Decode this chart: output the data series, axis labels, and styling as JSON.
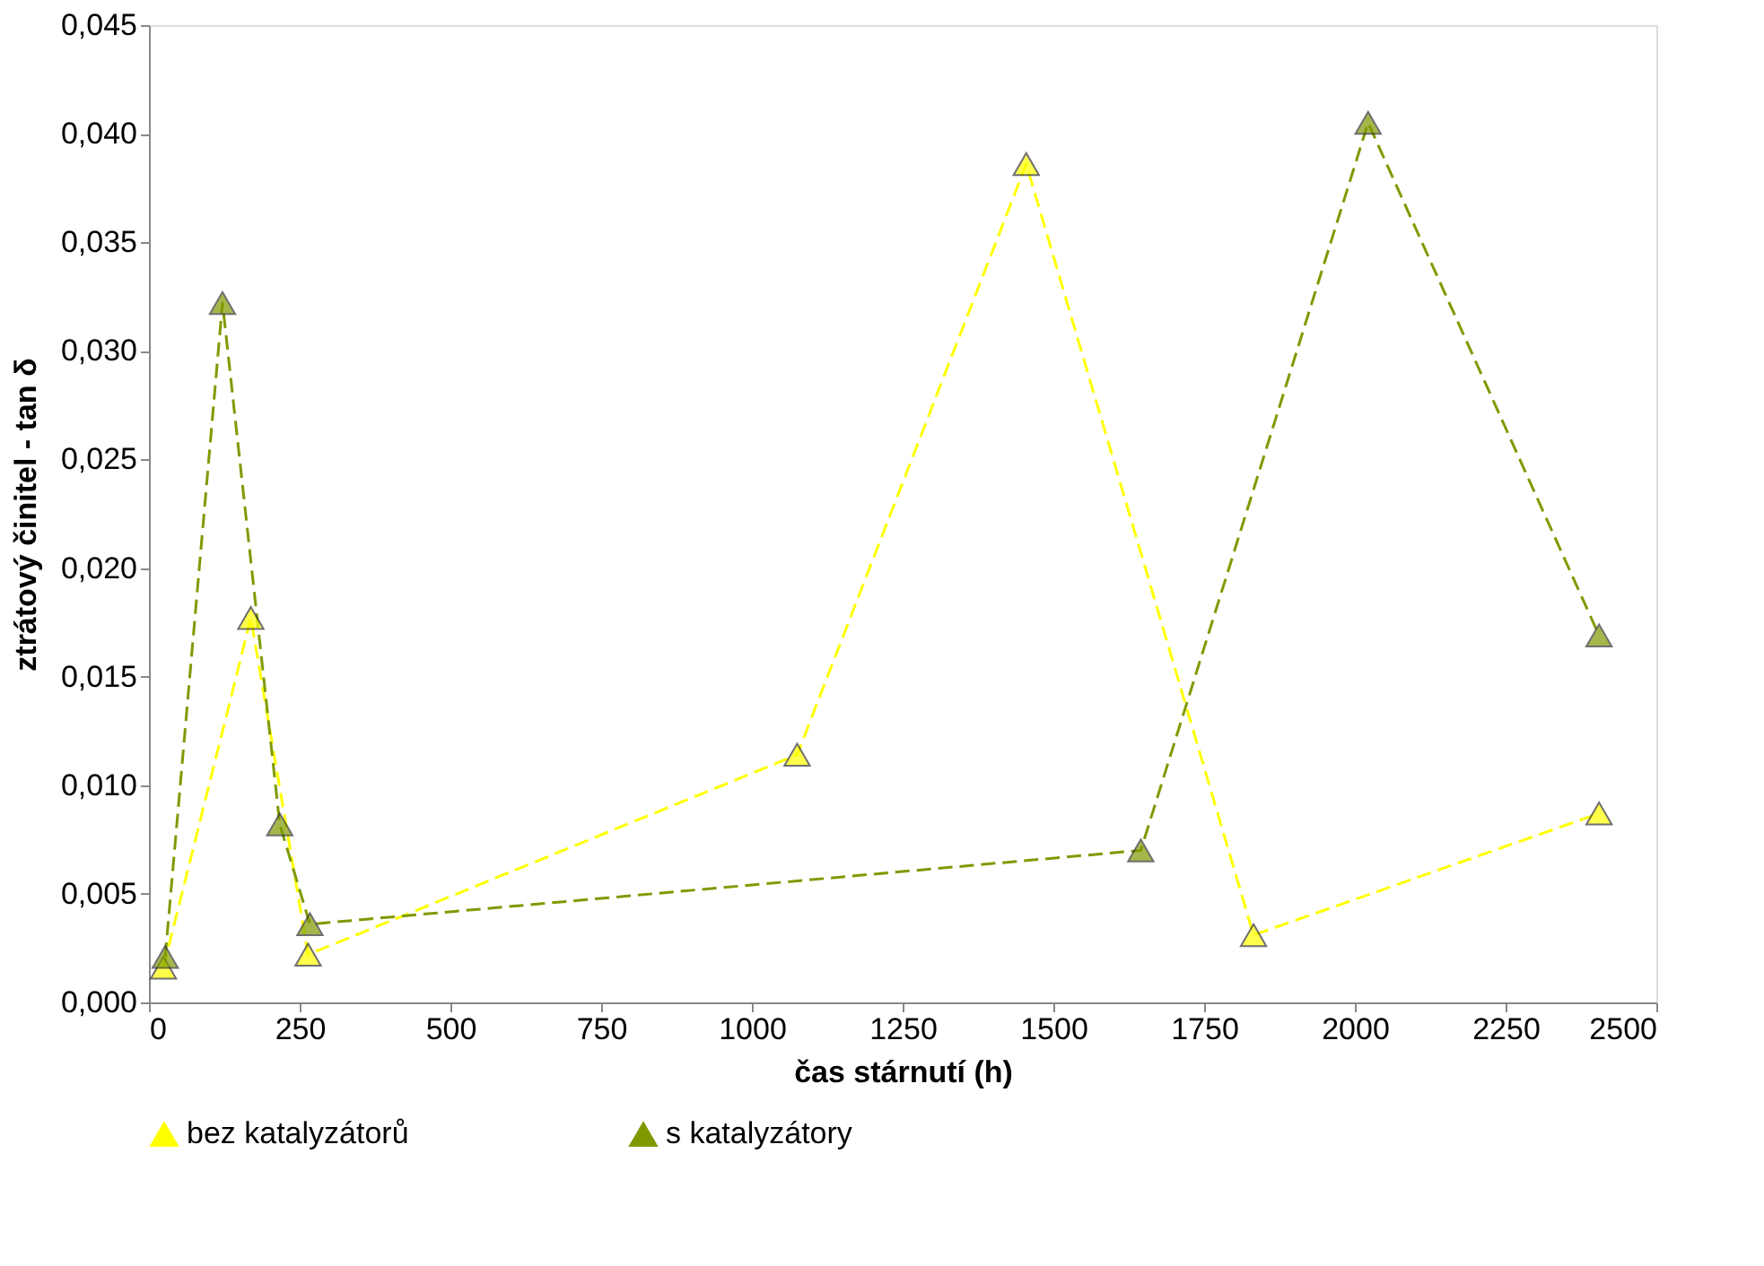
{
  "chart_data": {
    "type": "line",
    "xlabel": "čas stárnutí (h)",
    "ylabel": "ztrátový činitel - tan δ",
    "xlim": [
      0,
      2500
    ],
    "xticks": [
      0,
      250,
      500,
      750,
      1000,
      1250,
      1500,
      1750,
      2000,
      2250,
      2500
    ],
    "ylim": [
      0,
      0.045
    ],
    "yticks": [
      {
        "value": 0,
        "label": "0,000"
      },
      {
        "value": 0.005,
        "label": "0,005"
      },
      {
        "value": 0.01,
        "label": "0,010"
      },
      {
        "value": 0.015,
        "label": "0,015"
      },
      {
        "value": 0.02,
        "label": "0,020"
      },
      {
        "value": 0.025,
        "label": "0,025"
      },
      {
        "value": 0.03,
        "label": "0,030"
      },
      {
        "value": 0.035,
        "label": "0,035"
      },
      {
        "value": 0.04,
        "label": "0,040"
      },
      {
        "value": 0.045,
        "label": "0,045"
      }
    ],
    "grid": false,
    "legend": "bottom",
    "marker": "triangle",
    "line_style": "dashed",
    "series": [
      {
        "name": "bez katalyzátorů",
        "color": "#ffff00",
        "x": [
          24,
          169,
          264,
          1075,
          1455,
          1832,
          2405
        ],
        "values": [
          0.0016,
          0.0177,
          0.0022,
          0.0114,
          0.0386,
          0.0031,
          0.0087
        ]
      },
      {
        "name": "s katalyzátory",
        "color": "#7f9a00",
        "x": [
          27,
          122,
          217,
          267,
          1645,
          2022,
          2405
        ],
        "values": [
          0.0021,
          0.0322,
          0.0082,
          0.0036,
          0.007,
          0.0405,
          0.0169
        ]
      }
    ]
  }
}
